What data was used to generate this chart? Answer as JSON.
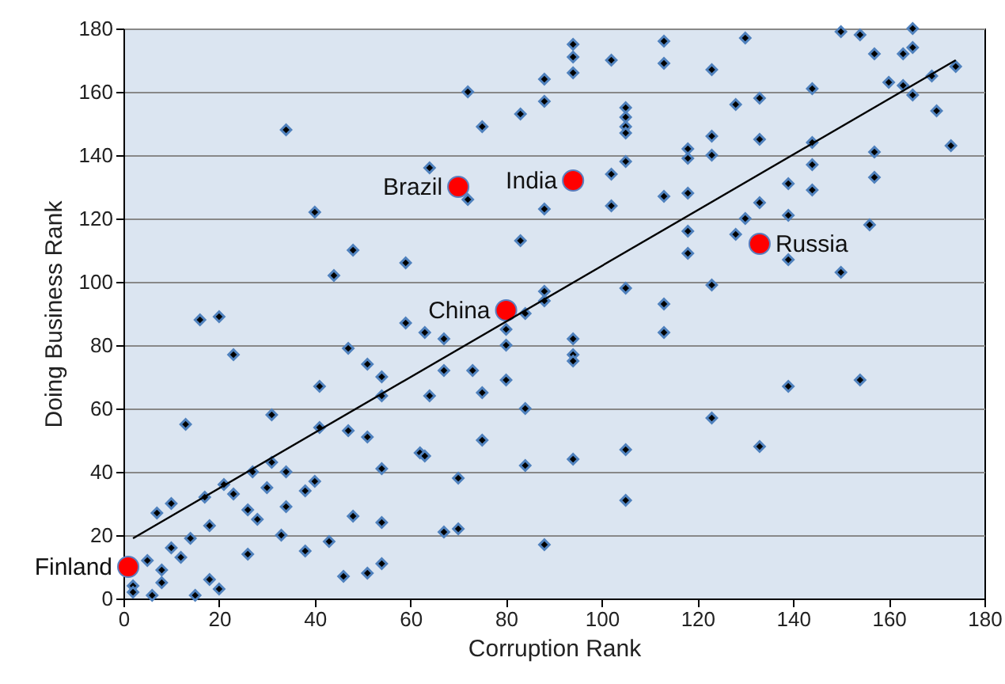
{
  "chart_data": {
    "type": "scatter",
    "xlabel": "Corruption Rank",
    "ylabel": "Doing Business Rank",
    "xlim": [
      0,
      180
    ],
    "ylim": [
      0,
      180
    ],
    "xticks": [
      0,
      20,
      40,
      60,
      80,
      100,
      120,
      140,
      160,
      180
    ],
    "yticks": [
      0,
      20,
      40,
      60,
      80,
      100,
      120,
      140,
      160,
      180
    ],
    "grid": "y",
    "series": [
      {
        "marker": "diamond",
        "color": "#000000",
        "x": [
          94,
          94,
          94,
          113,
          113,
          130,
          150,
          154,
          165,
          157,
          163,
          165,
          102,
          123,
          88,
          88,
          174,
          160,
          163,
          169,
          165,
          170,
          173,
          144,
          128,
          133,
          105,
          105,
          105,
          105,
          118,
          118,
          123,
          123,
          133,
          144,
          144,
          157,
          157,
          105,
          102,
          113,
          118,
          139,
          144,
          88,
          102,
          133,
          130,
          139,
          156,
          128,
          118,
          118,
          139,
          150,
          105,
          123,
          113,
          88,
          88,
          34,
          72,
          75,
          83,
          64,
          72,
          40,
          48,
          59,
          44,
          83,
          16,
          20,
          23,
          13,
          59,
          63,
          67,
          47,
          51,
          54,
          54,
          67,
          73,
          64,
          75,
          80,
          80,
          84,
          80,
          84,
          75,
          84,
          70,
          70,
          67,
          88,
          41,
          41,
          47,
          51,
          31,
          31,
          34,
          27,
          30,
          21,
          23,
          17,
          10,
          7,
          18,
          14,
          26,
          28,
          34,
          38,
          40,
          33,
          38,
          26,
          43,
          48,
          54,
          54,
          62,
          63,
          46,
          51,
          54,
          10,
          12,
          5,
          8,
          8,
          2,
          2,
          6,
          15,
          18,
          20,
          113,
          94,
          94,
          94,
          139,
          154,
          123,
          133,
          105,
          94,
          105
        ],
        "values": [
          175,
          171,
          166,
          176,
          169,
          177,
          179,
          178,
          180,
          172,
          172,
          174,
          170,
          167,
          164,
          157,
          168,
          163,
          162,
          165,
          159,
          154,
          143,
          161,
          156,
          158,
          155,
          152,
          149,
          147,
          142,
          139,
          146,
          140,
          145,
          144,
          137,
          141,
          133,
          138,
          134,
          127,
          128,
          131,
          129,
          123,
          124,
          125,
          120,
          121,
          118,
          115,
          116,
          109,
          107,
          103,
          98,
          99,
          93,
          97,
          94,
          148,
          160,
          149,
          153,
          136,
          126,
          122,
          110,
          106,
          102,
          113,
          88,
          89,
          77,
          55,
          87,
          84,
          82,
          79,
          74,
          70,
          64,
          72,
          72,
          64,
          65,
          80,
          85,
          90,
          69,
          60,
          50,
          42,
          38,
          22,
          21,
          17,
          67,
          54,
          53,
          51,
          58,
          43,
          40,
          40,
          35,
          36,
          33,
          32,
          30,
          27,
          23,
          19,
          28,
          25,
          29,
          34,
          37,
          20,
          15,
          14,
          18,
          26,
          41,
          24,
          46,
          45,
          7,
          8,
          11,
          16,
          13,
          12,
          9,
          5,
          4,
          2,
          1,
          1,
          6,
          3,
          84,
          82,
          77,
          75,
          67,
          69,
          57,
          48,
          47,
          44,
          31
        ]
      },
      {
        "type": "scatter",
        "marker": "circle",
        "color": "#ff0000",
        "x": [
          1,
          70,
          80,
          94,
          133
        ],
        "values": [
          10,
          130,
          91,
          132,
          112
        ]
      },
      {
        "type": "line",
        "color": "#000000",
        "x": [
          2,
          174
        ],
        "values": [
          19,
          170
        ]
      }
    ],
    "annotations": [
      {
        "text": "Finland",
        "x": 1,
        "y": 10
      },
      {
        "text": "Brazil",
        "x": 70,
        "y": 130
      },
      {
        "text": "China",
        "x": 80,
        "y": 91
      },
      {
        "text": "India",
        "x": 94,
        "y": 132
      },
      {
        "text": "Russia",
        "x": 133,
        "y": 112
      }
    ]
  }
}
